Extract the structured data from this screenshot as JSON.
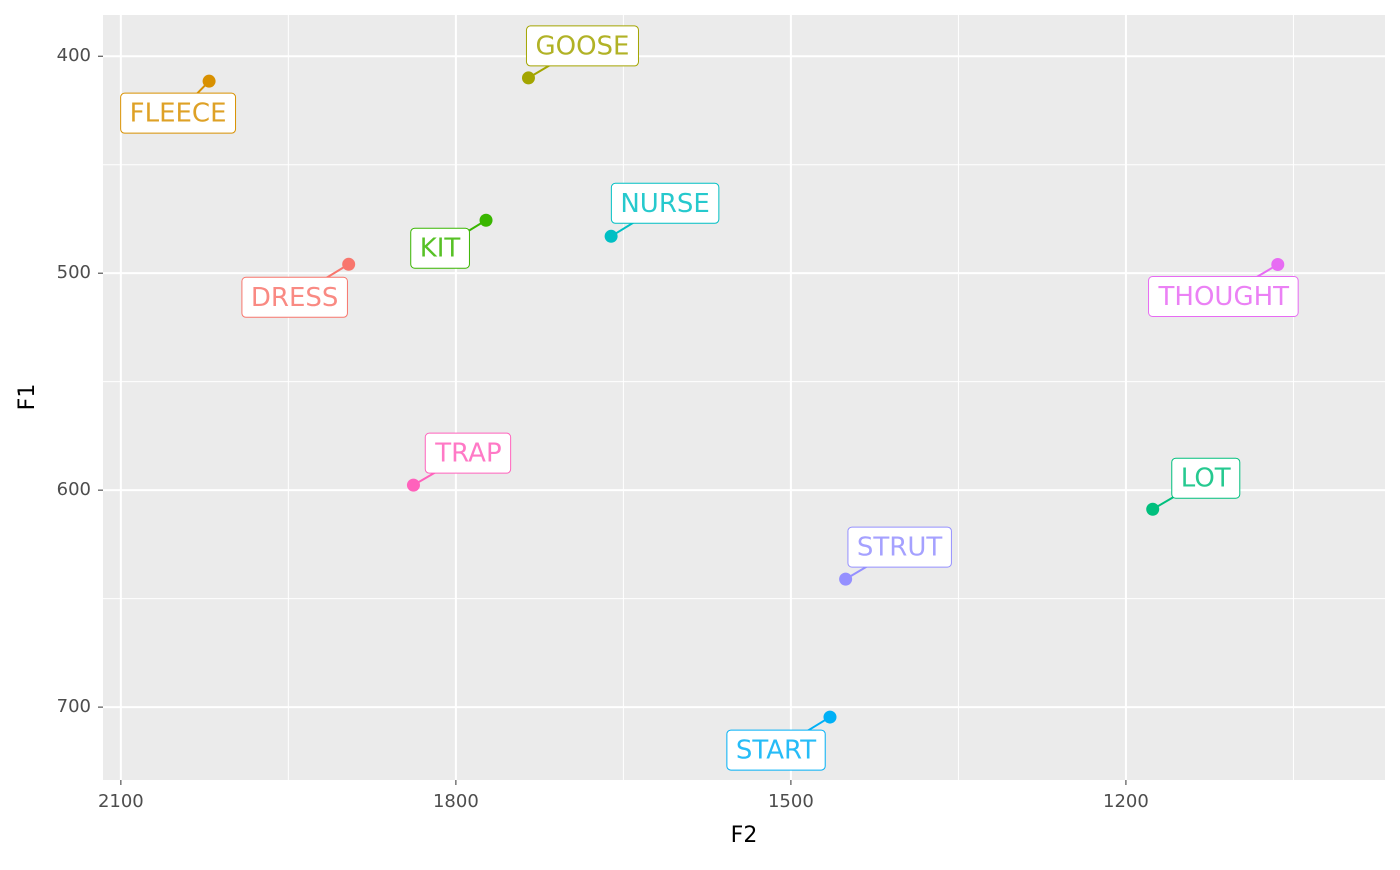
{
  "chart_data": {
    "type": "scatter",
    "x_label": "F2",
    "y_label": "F1",
    "labels": [
      "FLEECE",
      "GOOSE",
      "KIT",
      "NURSE",
      "DRESS",
      "THOUGHT",
      "TRAP",
      "LOT",
      "STRUT",
      "START"
    ],
    "x": [
      2021,
      1735,
      1773,
      1661,
      1896,
      1064,
      1838,
      1176,
      1451,
      1465
    ],
    "y": [
      411.5,
      410,
      475.6,
      483,
      495.9,
      496,
      597.7,
      608.8,
      641,
      704.6
    ],
    "colors": [
      "#D89000",
      "#A3A500",
      "#39B600",
      "#00BFC4",
      "#F8766D",
      "#E76BF3",
      "#FF62BC",
      "#00BF7D",
      "#9590FF",
      "#00B0F6"
    ],
    "xlim": [
      2116,
      968
    ],
    "ylim": [
      381,
      733.6
    ],
    "xticks": [
      2100,
      1800,
      1500,
      1200
    ],
    "yticks": [
      400,
      500,
      600,
      700
    ],
    "xminor": [
      1950,
      1650,
      1350,
      1050
    ],
    "yminor": [
      450,
      550,
      650
    ],
    "x_reversed": true,
    "y_reversed": true,
    "grid": true
  }
}
